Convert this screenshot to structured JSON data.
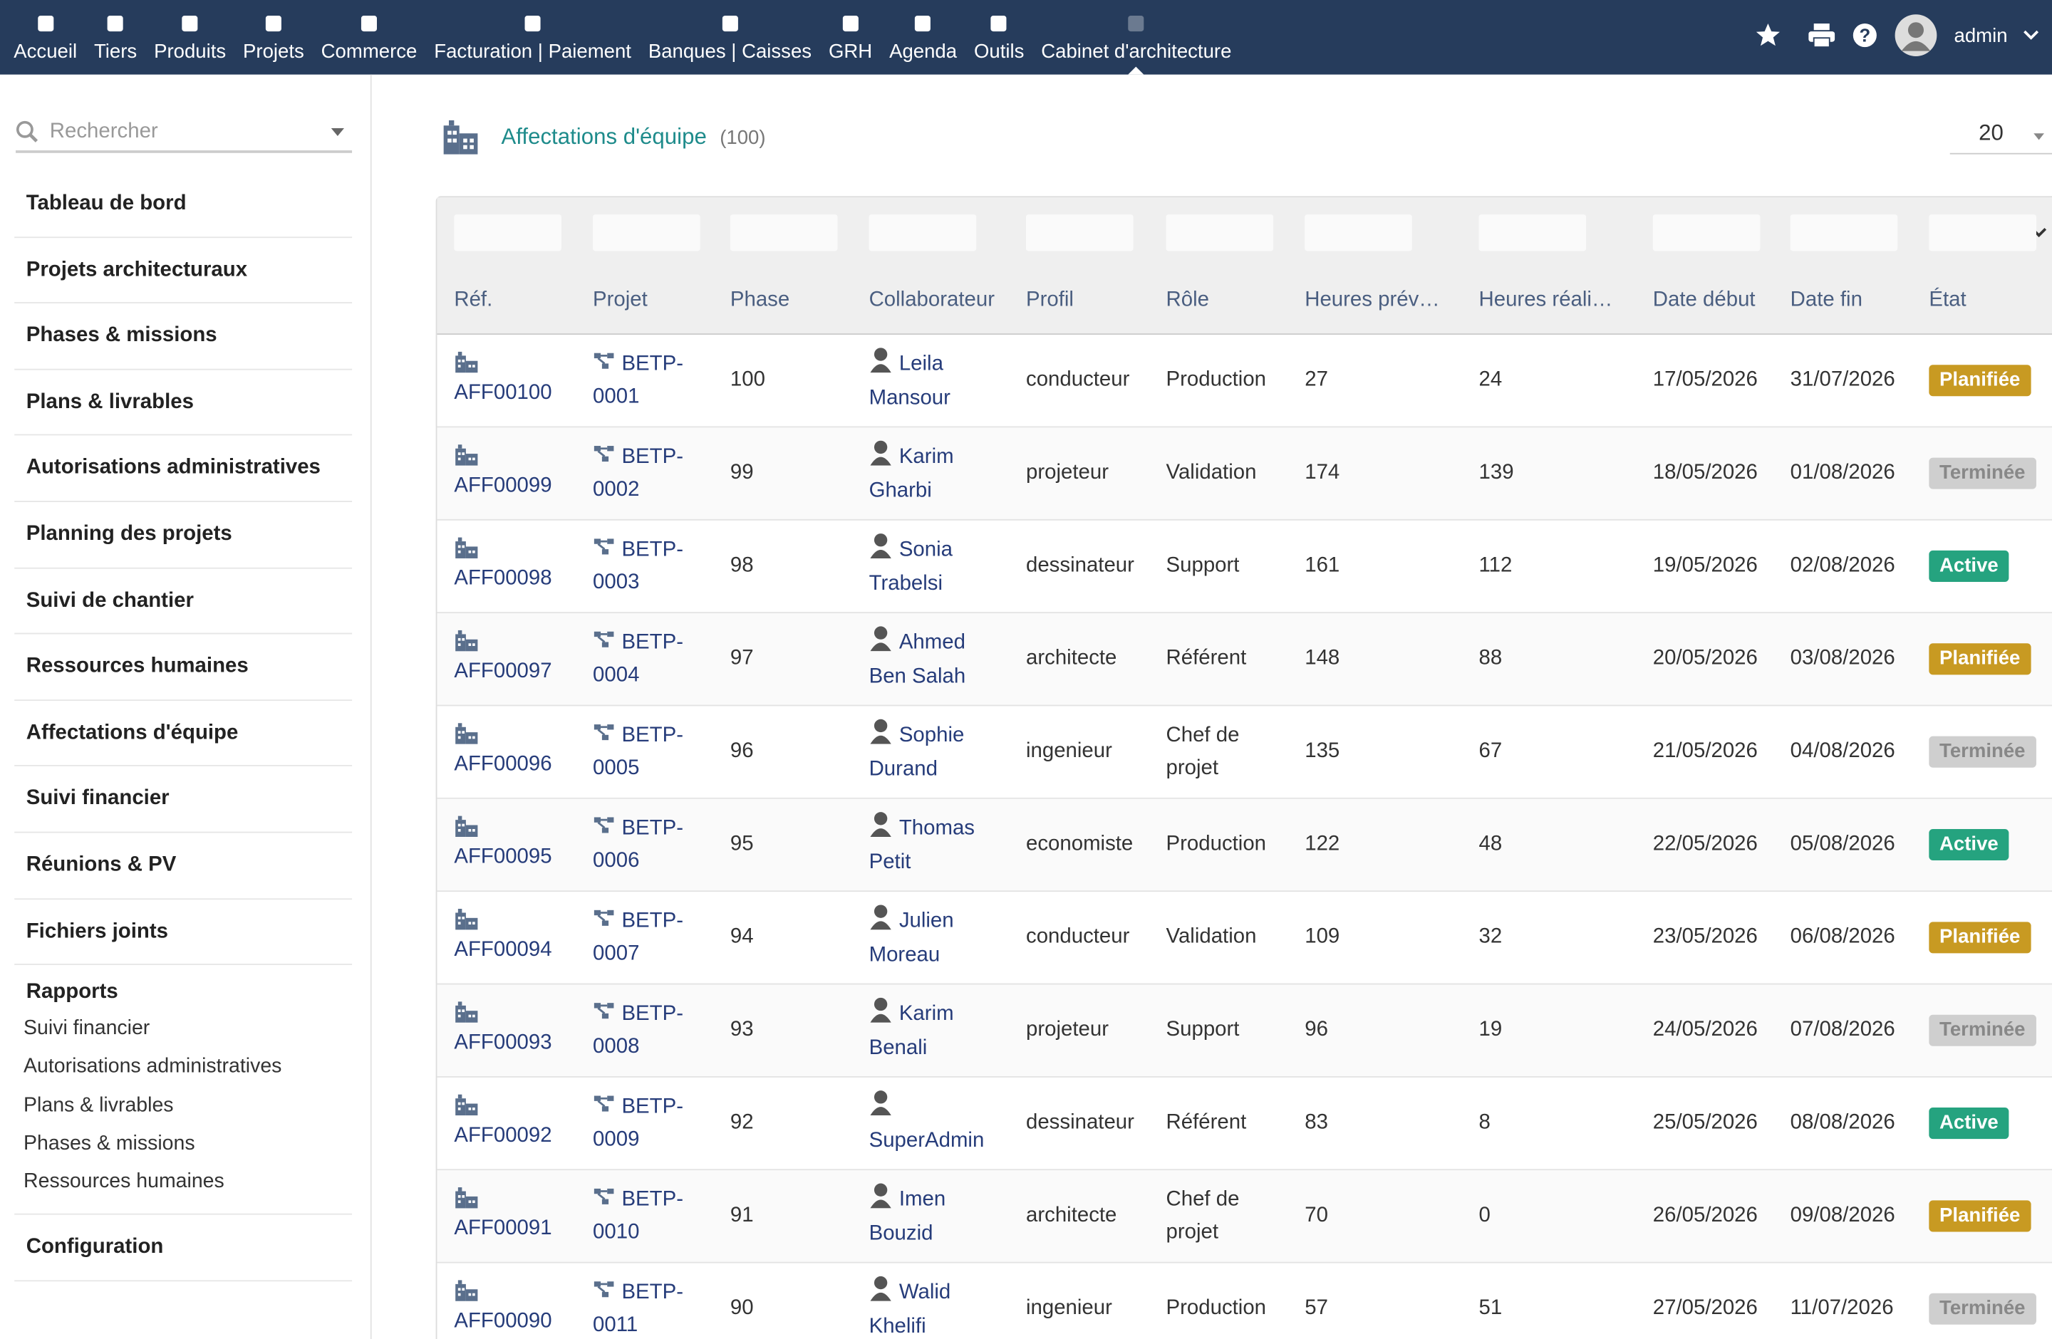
{
  "topnav": {
    "items": [
      {
        "label": "Accueil"
      },
      {
        "label": "Tiers"
      },
      {
        "label": "Produits"
      },
      {
        "label": "Projets"
      },
      {
        "label": "Commerce"
      },
      {
        "label": "Facturation | Paiement"
      },
      {
        "label": "Banques | Caisses"
      },
      {
        "label": "GRH"
      },
      {
        "label": "Agenda"
      },
      {
        "label": "Outils"
      },
      {
        "label": "Cabinet d'architecture",
        "active": true
      }
    ],
    "user": "admin"
  },
  "sidebar": {
    "search_placeholder": "Rechercher",
    "menu": [
      "Tableau de bord",
      "Projets architecturaux",
      "Phases & missions",
      "Plans & livrables",
      "Autorisations administratives",
      "Planning des projets",
      "Suivi de chantier",
      "Ressources humaines",
      "Affectations d'équipe",
      "Suivi financier",
      "Réunions & PV",
      "Fichiers joints"
    ],
    "reports": {
      "title": "Rapports",
      "items": [
        "Suivi financier",
        "Autorisations administratives",
        "Plans & livrables",
        "Phases & missions",
        "Ressources humaines"
      ]
    },
    "configuration": "Configuration"
  },
  "header": {
    "title": "Affectations d'équipe",
    "count": "(100)",
    "per_page": "20"
  },
  "table": {
    "columns": [
      "Réf.",
      "Projet",
      "Phase",
      "Collaborateur",
      "Profil",
      "Rôle",
      "Heures prév…",
      "Heures réali…",
      "Date début",
      "Date fin",
      "État"
    ],
    "rows": [
      {
        "cells": [
          "AFF00100",
          "BETP-0001",
          "100",
          "Leila Mansour",
          "conducteur",
          "Production",
          "27",
          "24",
          "17/05/2026",
          "31/07/2026",
          "Planifiée"
        ],
        "status_color": "#c89a22"
      },
      {
        "cells": [
          "AFF00099",
          "BETP-0002",
          "99",
          "Karim Gharbi",
          "projeteur",
          "Validation",
          "174",
          "139",
          "18/05/2026",
          "01/08/2026",
          "Terminée"
        ],
        "status_color": "#cfcfcf"
      },
      {
        "cells": [
          "AFF00098",
          "BETP-0003",
          "98",
          "Sonia Trabelsi",
          "dessinateur",
          "Support",
          "161",
          "112",
          "19/05/2026",
          "02/08/2026",
          "Active"
        ],
        "status_color": "#25a37f"
      },
      {
        "cells": [
          "AFF00097",
          "BETP-0004",
          "97",
          "Ahmed Ben Salah",
          "architecte",
          "Référent",
          "148",
          "88",
          "20/05/2026",
          "03/08/2026",
          "Planifiée"
        ],
        "status_color": "#c89a22"
      },
      {
        "cells": [
          "AFF00096",
          "BETP-0005",
          "96",
          "Sophie Durand",
          "ingenieur",
          "Chef de projet",
          "135",
          "67",
          "21/05/2026",
          "04/08/2026",
          "Terminée"
        ],
        "status_color": "#cfcfcf"
      },
      {
        "cells": [
          "AFF00095",
          "BETP-0006",
          "95",
          "Thomas Petit",
          "economiste",
          "Production",
          "122",
          "48",
          "22/05/2026",
          "05/08/2026",
          "Active"
        ],
        "status_color": "#25a37f"
      },
      {
        "cells": [
          "AFF00094",
          "BETP-0007",
          "94",
          "Julien Moreau",
          "conducteur",
          "Validation",
          "109",
          "32",
          "23/05/2026",
          "06/08/2026",
          "Planifiée"
        ],
        "status_color": "#c89a22"
      },
      {
        "cells": [
          "AFF00093",
          "BETP-0008",
          "93",
          "Karim Benali",
          "projeteur",
          "Support",
          "96",
          "19",
          "24/05/2026",
          "07/08/2026",
          "Terminée"
        ],
        "status_color": "#cfcfcf"
      },
      {
        "cells": [
          "AFF00092",
          "BETP-0009",
          "92",
          "SuperAdmin",
          "dessinateur",
          "Référent",
          "83",
          "8",
          "25/05/2026",
          "08/08/2026",
          "Active"
        ],
        "status_color": "#25a37f"
      },
      {
        "cells": [
          "AFF00091",
          "BETP-0010",
          "91",
          "Imen Bouzid",
          "architecte",
          "Chef de projet",
          "70",
          "0",
          "26/05/2026",
          "09/08/2026",
          "Planifiée"
        ],
        "status_color": "#c89a22"
      },
      {
        "cells": [
          "AFF00090",
          "BETP-0011",
          "90",
          "Walid Khelifi",
          "ingenieur",
          "Production",
          "57",
          "51",
          "27/05/2026",
          "11/07/2026",
          "Terminée"
        ],
        "status_color": "#cfcfcf"
      }
    ]
  }
}
